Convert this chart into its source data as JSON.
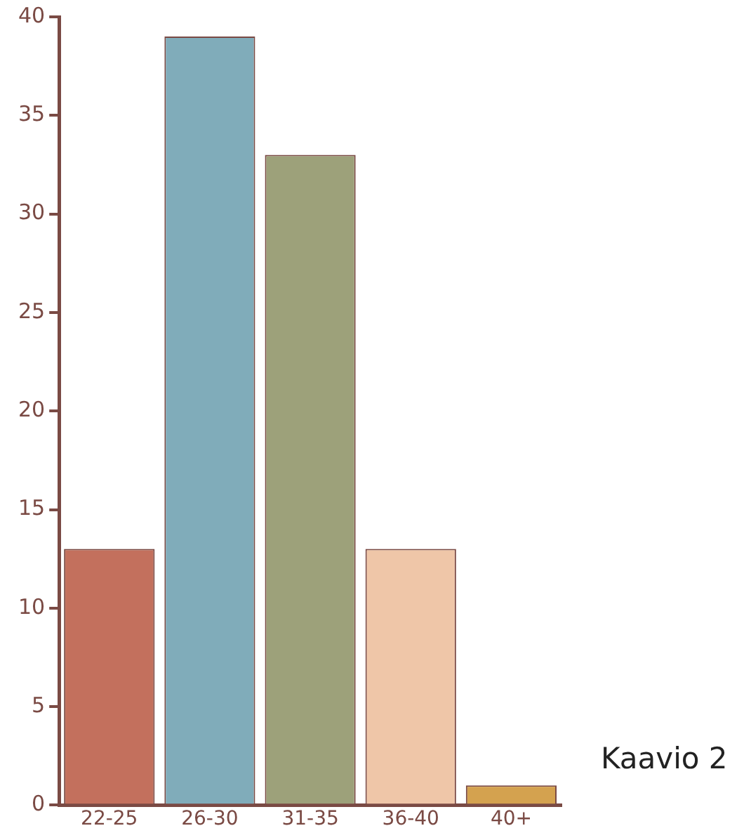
{
  "chart_data": {
    "type": "bar",
    "categories": [
      "22-25",
      "26-30",
      "31-35",
      "36-40",
      "40+"
    ],
    "values": [
      13,
      39,
      33,
      13,
      1
    ],
    "colors": [
      "#c3705d",
      "#80acba",
      "#9da17a",
      "#efc6a8",
      "#d4a24f"
    ],
    "ylim": [
      0,
      40
    ],
    "yticks": [
      0,
      5,
      10,
      15,
      20,
      25,
      30,
      35,
      40
    ],
    "grid": false,
    "legend": false,
    "annotations": [
      "Kaavio 2"
    ]
  }
}
